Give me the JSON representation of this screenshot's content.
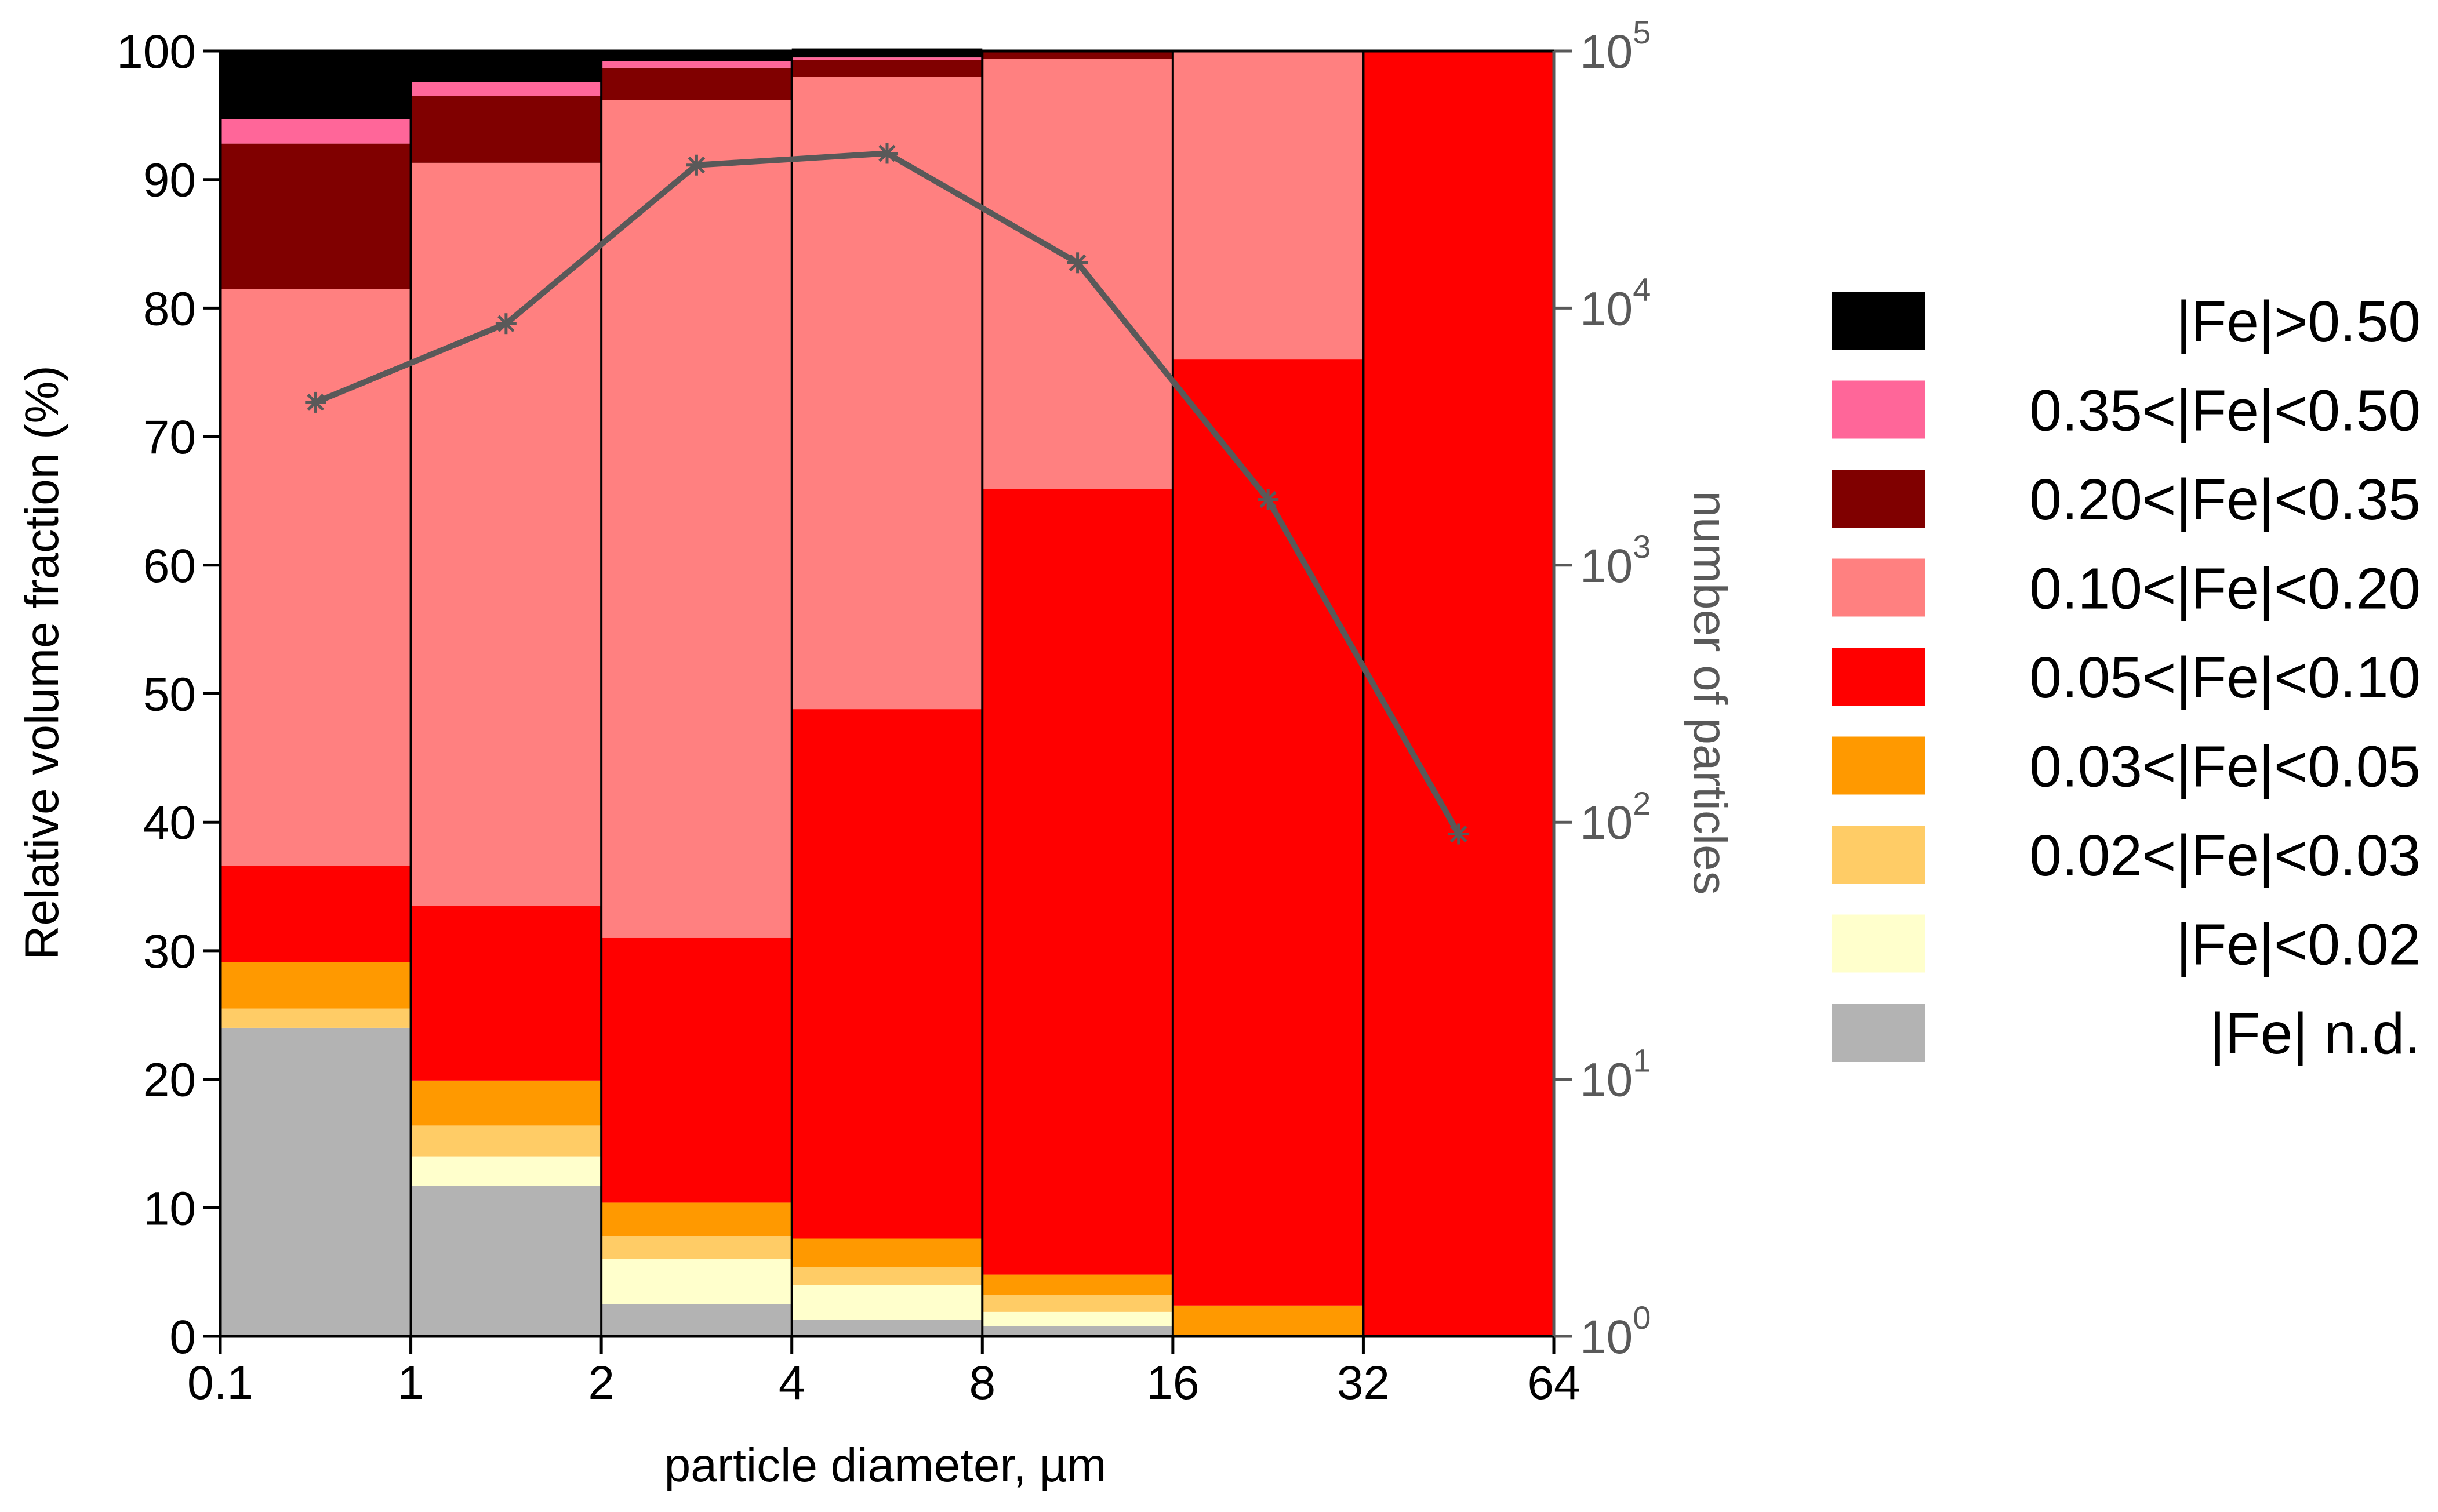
{
  "chart_data": {
    "type": "bar",
    "stacked": true,
    "categories": [
      "0.1-1",
      "1-2",
      "2-4",
      "4-8",
      "8-16",
      "16-32",
      "32-64"
    ],
    "x_tick_labels": [
      "0.1",
      "1",
      "2",
      "4",
      "8",
      "16",
      "32",
      "64"
    ],
    "xlabel": "particle diameter, µm",
    "ylabel": "Relative volume fraction (%)",
    "ylim": [
      0,
      100
    ],
    "y_ticks": [
      0,
      10,
      20,
      30,
      40,
      50,
      60,
      70,
      80,
      90,
      100
    ],
    "y2label": "number of particles",
    "y2_scale": "log",
    "y2lim": [
      1,
      100000
    ],
    "y2_ticks": [
      {
        "base": "10",
        "exp": "0"
      },
      {
        "base": "10",
        "exp": "1"
      },
      {
        "base": "10",
        "exp": "2"
      },
      {
        "base": "10",
        "exp": "3"
      },
      {
        "base": "10",
        "exp": "4"
      },
      {
        "base": "10",
        "exp": "5"
      }
    ],
    "legend_position": "right",
    "series": [
      {
        "name": "|Fe| n.d.",
        "color": "#b3b3b3",
        "values": [
          24,
          11.7,
          2.5,
          1.3,
          0.8,
          0,
          0
        ]
      },
      {
        "name": "|Fe|<0.02",
        "color": "#ffffcc",
        "values": [
          0,
          2.3,
          3.5,
          2.7,
          1.1,
          0,
          0
        ]
      },
      {
        "name": "0.02<|Fe|<0.03",
        "color": "#ffcc66",
        "values": [
          1.5,
          2.4,
          1.8,
          1.4,
          1.3,
          0,
          0
        ]
      },
      {
        "name": "0.03<|Fe|<0.05",
        "color": "#ff9900",
        "values": [
          3.6,
          3.5,
          2.6,
          2.2,
          1.6,
          2.4,
          0
        ]
      },
      {
        "name": "0.05<|Fe|<0.10",
        "color": "#ff0000",
        "values": [
          7.5,
          13.6,
          20.6,
          41.2,
          61.1,
          73.6,
          100
        ]
      },
      {
        "name": "0.10<|Fe|<0.20",
        "color": "#ff8080",
        "values": [
          44.9,
          57.8,
          65.2,
          49.2,
          33.5,
          24,
          0
        ]
      },
      {
        "name": "0.20<|Fe|<0.35",
        "color": "#800000",
        "values": [
          11.3,
          5.2,
          2.5,
          1.3,
          0.6,
          0,
          0
        ]
      },
      {
        "name": "0.35<|Fe|<0.50",
        "color": "#ff6699",
        "values": [
          1.9,
          1.1,
          0.5,
          0.2,
          0,
          0,
          0
        ]
      },
      {
        "name": "|Fe|>0.50",
        "color": "#000000",
        "values": [
          5.3,
          2.4,
          0.8,
          0.7,
          0,
          0,
          0
        ]
      }
    ],
    "line_series": {
      "axis": "right",
      "color": "#595959",
      "values": [
        4300,
        8700,
        36000,
        40000,
        15000,
        1800,
        90
      ]
    }
  }
}
